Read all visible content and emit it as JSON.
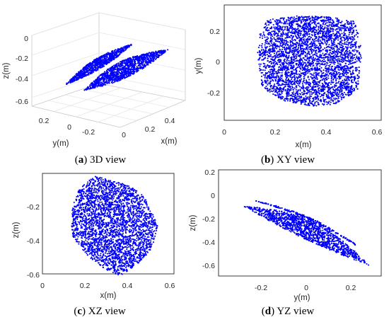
{
  "figure": {
    "panels": [
      {
        "id": "a",
        "letter": "a",
        "caption": "3D view"
      },
      {
        "id": "b",
        "letter": "b",
        "caption": "XY view"
      },
      {
        "id": "c",
        "letter": "c",
        "caption": "XZ view"
      },
      {
        "id": "d",
        "letter": "d",
        "caption": "YZ view"
      }
    ],
    "marker_color": "#0000ff"
  },
  "chart_data": [
    {
      "type": "scatter",
      "panel": "a",
      "projection": "3d",
      "xlabel": "x(m)",
      "ylabel": "y(m)",
      "zlabel": "z(m)",
      "xticks": [
        "0",
        "0.2",
        "0.4"
      ],
      "yticks": [
        "0.2",
        "0",
        "-0.2"
      ],
      "zticks": [
        "0",
        "-0.2",
        "-0.4",
        "-0.6"
      ],
      "xlim": [
        0,
        0.55
      ],
      "ylim": [
        -0.3,
        0.3
      ],
      "zlim": [
        -0.65,
        0
      ],
      "grid": true,
      "series": [
        {
          "shape": "upper lobe",
          "x_range": [
            0.15,
            0.5
          ],
          "y_range": [
            -0.3,
            0.3
          ],
          "z_range": [
            -0.45,
            -0.05
          ]
        },
        {
          "shape": "lower lobe",
          "x_range": [
            0.15,
            0.5
          ],
          "y_range": [
            -0.3,
            0.3
          ],
          "z_range": [
            -0.6,
            -0.1
          ]
        }
      ]
    },
    {
      "type": "scatter",
      "panel": "b",
      "xlabel": "x(m)",
      "ylabel": "y(m)",
      "xticks": [
        "0",
        "0.2",
        "0.4",
        "0.6"
      ],
      "yticks": [
        "0.2",
        "0",
        "-0.2"
      ],
      "xlim": [
        0,
        0.65
      ],
      "ylim": [
        -0.34,
        0.3
      ],
      "region": {
        "x_range": [
          0.12,
          0.53
        ],
        "y_range": [
          -0.29,
          0.28
        ]
      }
    },
    {
      "type": "scatter",
      "panel": "c",
      "xlabel": "x(m)",
      "ylabel": "z(m)",
      "xticks": [
        "0",
        "0.2",
        "0.4",
        "0.6"
      ],
      "yticks": [
        "-0.2",
        "-0.4",
        "-0.6"
      ],
      "xlim": [
        0,
        0.65
      ],
      "ylim": [
        -0.62,
        -0.02
      ],
      "region": {
        "x_range": [
          0.13,
          0.52
        ],
        "z_range": [
          -0.61,
          -0.04
        ]
      }
    },
    {
      "type": "scatter",
      "panel": "d",
      "xlabel": "y(m)",
      "ylabel": "z(m)",
      "xticks": [
        "-0.2",
        "0",
        "0.2"
      ],
      "yticks": [
        "0.2",
        "0",
        "-0.2",
        "-0.4",
        "-0.6"
      ],
      "xlim": [
        -0.35,
        0.35
      ],
      "ylim": [
        -0.65,
        0.22
      ],
      "series": [
        {
          "shape": "upper lobe",
          "y_range": [
            -0.22,
            0.27
          ],
          "z_range": [
            -0.5,
            -0.04
          ]
        },
        {
          "shape": "lower lobe",
          "y_range": [
            -0.3,
            0.3
          ],
          "z_range": [
            -0.6,
            -0.09
          ]
        }
      ]
    }
  ]
}
